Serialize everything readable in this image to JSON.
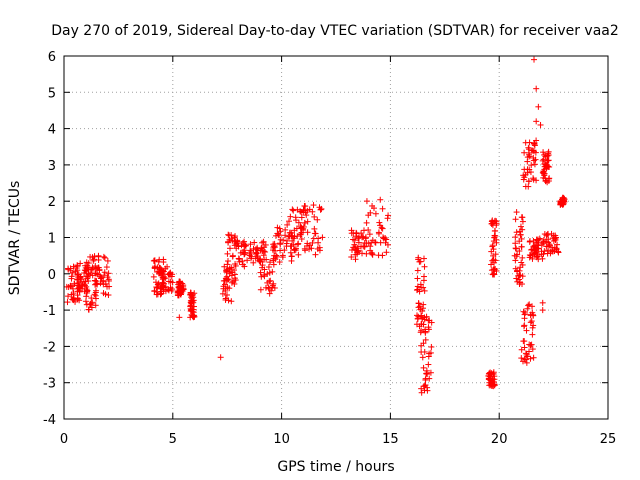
{
  "chart_data": {
    "type": "scatter",
    "title": "Day 270 of 2019, Sidereal Day-to-day VTEC variation (SDTVAR) for receiver vaa2",
    "xlabel": "GPS time / hours",
    "ylabel": "SDTVAR / TECUs",
    "xlim": [
      0,
      25
    ],
    "ylim": [
      -4,
      6
    ],
    "x_ticks": [
      0,
      5,
      10,
      15,
      20,
      25
    ],
    "y_ticks": [
      -4,
      -3,
      -2,
      -1,
      0,
      1,
      2,
      3,
      4,
      5,
      6
    ],
    "grid": true,
    "marker": "+",
    "color": "#ff0000",
    "series": [
      {
        "name": "vaa2",
        "clusters": [
          {
            "t": [
              0.1,
              0.8
            ],
            "v": [
              -0.8,
              0.2
            ]
          },
          {
            "t": [
              0.6,
              1.1
            ],
            "v": [
              -0.5,
              0.3
            ]
          },
          {
            "t": [
              1.0,
              1.5
            ],
            "v": [
              -1.0,
              0.5
            ]
          },
          {
            "t": [
              1.4,
              2.1
            ],
            "v": [
              -0.6,
              0.5
            ]
          },
          {
            "t": [
              4.1,
              4.6
            ],
            "v": [
              -0.6,
              0.4
            ]
          },
          {
            "t": [
              4.4,
              5.0
            ],
            "v": [
              -0.5,
              0.2
            ]
          },
          {
            "t": [
              5.2,
              5.5
            ],
            "v": [
              -0.6,
              -0.2
            ]
          },
          {
            "t": [
              5.8,
              6.0
            ],
            "v": [
              -1.2,
              -0.5
            ]
          },
          {
            "t": [
              7.3,
              7.9
            ],
            "v": [
              -0.8,
              0.2
            ]
          },
          {
            "t": [
              7.5,
              8.3
            ],
            "v": [
              0.2,
              1.1
            ]
          },
          {
            "t": [
              8.2,
              9.2
            ],
            "v": [
              0.3,
              0.9
            ]
          },
          {
            "t": [
              9.0,
              9.7
            ],
            "v": [
              -0.6,
              0.9
            ]
          },
          {
            "t": [
              9.6,
              10.6
            ],
            "v": [
              0.3,
              1.3
            ]
          },
          {
            "t": [
              10.2,
              11.0
            ],
            "v": [
              0.5,
              1.8
            ]
          },
          {
            "t": [
              11.0,
              11.9
            ],
            "v": [
              0.5,
              1.9
            ]
          },
          {
            "t": [
              13.2,
              13.9
            ],
            "v": [
              0.4,
              1.2
            ]
          },
          {
            "t": [
              13.9,
              14.9
            ],
            "v": [
              0.5,
              2.1
            ]
          },
          {
            "t": [
              16.2,
              16.6
            ],
            "v": [
              -1.8,
              0.5
            ]
          },
          {
            "t": [
              16.4,
              16.9
            ],
            "v": [
              -3.3,
              -1.0
            ]
          },
          {
            "t": [
              19.5,
              19.8
            ],
            "v": [
              -3.1,
              -2.7
            ]
          },
          {
            "t": [
              19.6,
              19.9
            ],
            "v": [
              -0.1,
              1.5
            ]
          },
          {
            "t": [
              20.7,
              21.1
            ],
            "v": [
              -0.3,
              1.6
            ]
          },
          {
            "t": [
              21.0,
              21.6
            ],
            "v": [
              -2.5,
              -0.8
            ]
          },
          {
            "t": [
              21.1,
              21.7
            ],
            "v": [
              2.4,
              3.7
            ]
          },
          {
            "t": [
              21.4,
              22.0
            ],
            "v": [
              0.4,
              1.0
            ]
          },
          {
            "t": [
              22.0,
              22.3
            ],
            "v": [
              2.5,
              3.4
            ]
          },
          {
            "t": [
              22.0,
              22.8
            ],
            "v": [
              0.5,
              1.1
            ]
          },
          {
            "t": [
              22.8,
              23.0
            ],
            "v": [
              1.9,
              2.1
            ]
          }
        ],
        "isolated": [
          [
            7.2,
            -2.3
          ],
          [
            5.3,
            -1.2
          ],
          [
            5.8,
            -1.2
          ],
          [
            21.6,
            5.9
          ],
          [
            21.7,
            5.1
          ],
          [
            21.8,
            4.6
          ],
          [
            21.7,
            4.2
          ],
          [
            21.9,
            4.1
          ],
          [
            22.0,
            -0.8
          ],
          [
            22.0,
            -1.0
          ],
          [
            20.8,
            1.7
          ],
          [
            21.0,
            1.3
          ]
        ]
      }
    ]
  }
}
